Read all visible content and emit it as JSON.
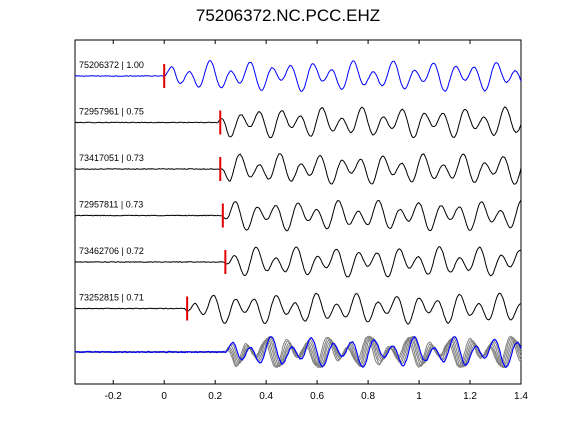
{
  "title": "75206372.NC.PCC.EHZ",
  "chart_data": {
    "type": "line",
    "title": "75206372.NC.PCC.EHZ",
    "xlim": [
      -0.35,
      1.4
    ],
    "xticks": [
      -0.2,
      0,
      0.2,
      0.4,
      0.6,
      0.8,
      1.0,
      1.2,
      1.4
    ],
    "xtick_labels": [
      "-0.2",
      "0",
      "0.2",
      "0.4",
      "0.6",
      "0.8",
      "1",
      "1.2",
      "1.4"
    ],
    "grid": false,
    "traces": [
      {
        "label": "75206372 | 1.00",
        "pick": 0.0,
        "onset": 0.0,
        "color": "#0000ff"
      },
      {
        "label": "72957961 | 0.75",
        "pick": 0.22,
        "onset": 0.21,
        "color": "#000000"
      },
      {
        "label": "73417051 | 0.73",
        "pick": 0.22,
        "onset": 0.22,
        "color": "#000000"
      },
      {
        "label": "72957811 | 0.73",
        "pick": 0.23,
        "onset": 0.22,
        "color": "#000000"
      },
      {
        "label": "73462706 | 0.72",
        "pick": 0.24,
        "onset": 0.23,
        "color": "#000000"
      },
      {
        "label": "73252815 | 0.71",
        "pick": 0.09,
        "onset": 0.08,
        "color": "#000000"
      }
    ],
    "stack": {
      "colors": [
        "#0000ff",
        "#808080"
      ]
    },
    "pick_color": "#e00000"
  }
}
